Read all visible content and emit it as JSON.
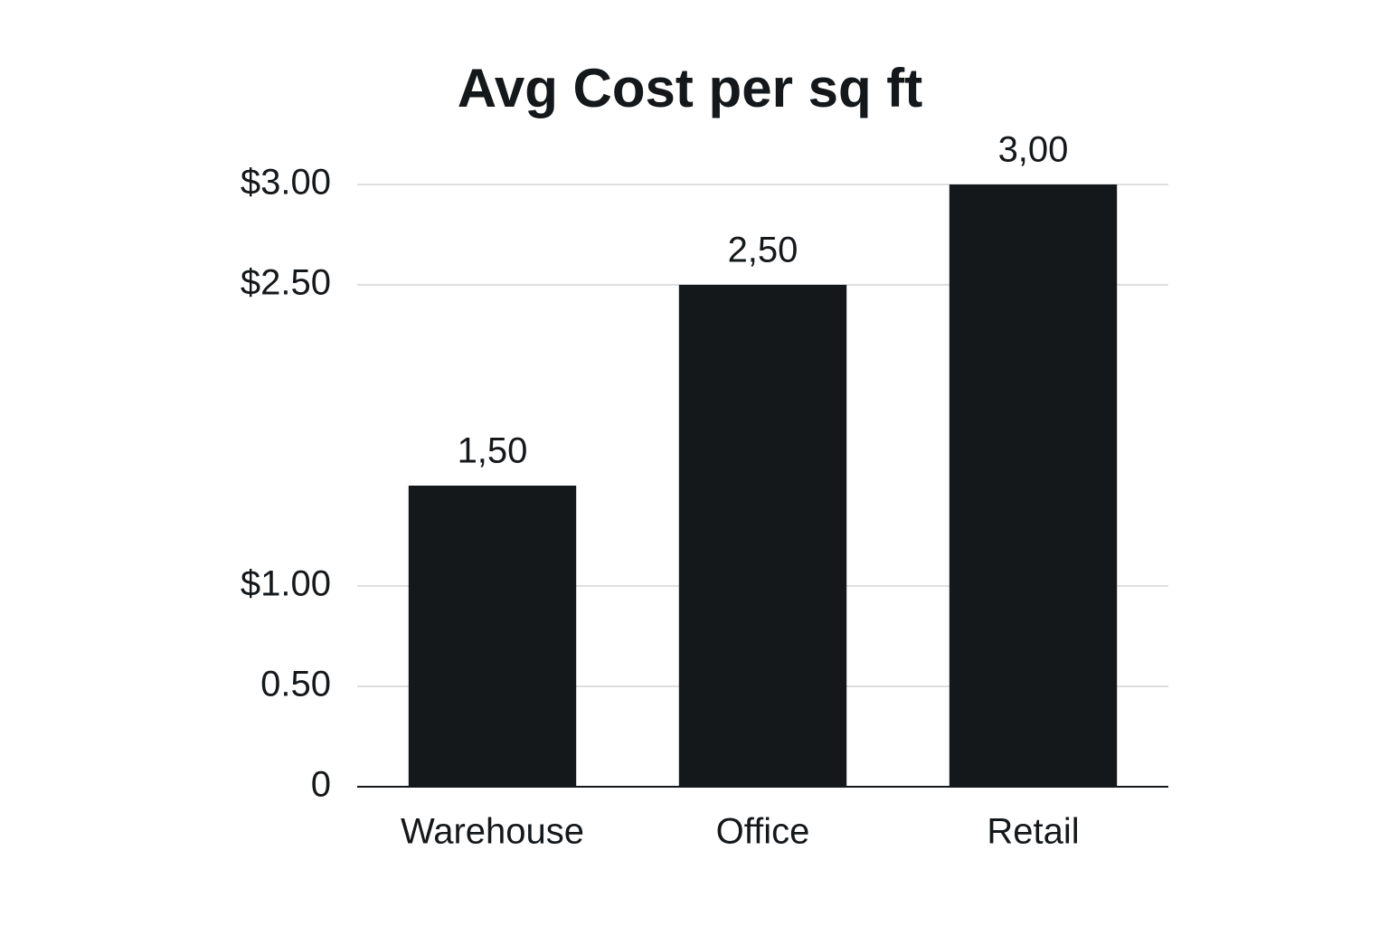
{
  "chart_data": {
    "type": "bar",
    "title": "Avg Cost per sq ft",
    "categories": [
      "Warehouse",
      "Office",
      "Retail"
    ],
    "values": [
      1.5,
      2.5,
      3.0
    ],
    "value_labels": [
      "1,50",
      "2,50",
      "3,00"
    ],
    "color": "#15181b",
    "ylim": [
      0,
      3
    ],
    "yticks": [
      0,
      {
        "value": 0.5,
        "label": "0.50"
      },
      {
        "value": 1,
        "label": "$1.00"
      },
      {
        "value": 2.5,
        "label": "$2.50"
      },
      {
        "value": 3,
        "label": "$3.00"
      }
    ],
    "grid": true
  }
}
